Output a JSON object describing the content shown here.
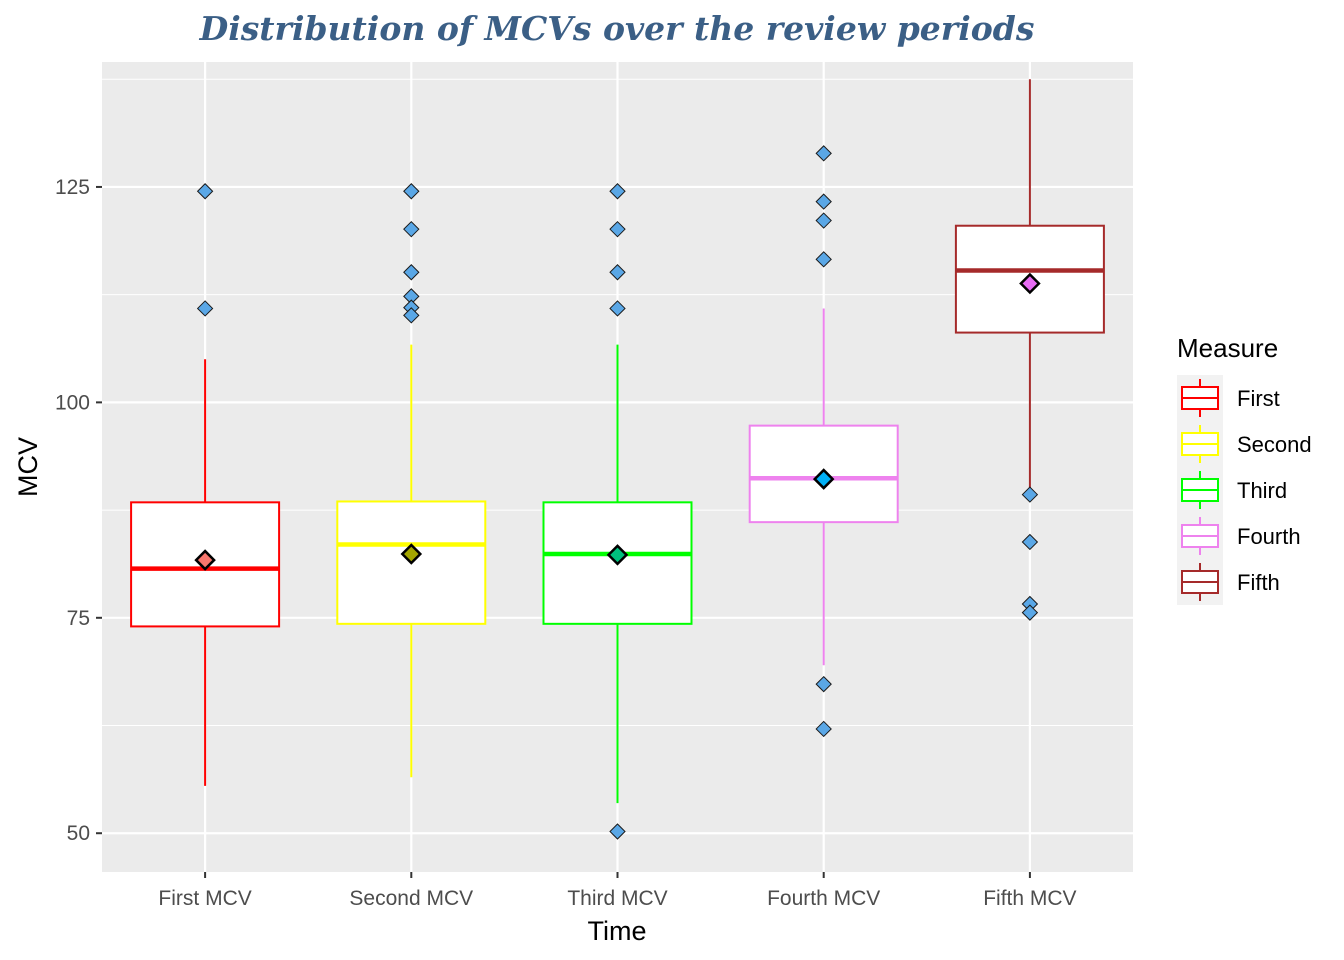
{
  "chart_data": {
    "type": "boxplot",
    "title": "Distribution of MCVs over the review periods",
    "xlabel": "Time",
    "ylabel": "MCV",
    "ylim": [
      45.5,
      139.5
    ],
    "yticks": [
      50,
      75,
      100,
      125
    ],
    "grid": true,
    "legend": {
      "title": "Measure",
      "placement": "right",
      "entries": [
        "First",
        "Second",
        "Third",
        "Fourth",
        "Fifth"
      ]
    },
    "categories": [
      "First MCV",
      "Second MCV",
      "Third MCV",
      "Fourth MCV",
      "Fifth MCV"
    ],
    "series": [
      {
        "legend": "First",
        "color": "#ff0000",
        "mean_color": "#f8766d",
        "whisker_low": 55.5,
        "q1": 74,
        "median": 80.7,
        "q3": 88.4,
        "whisker_high": 105,
        "mean": 81.7,
        "outliers": [
          124.5,
          110.9
        ]
      },
      {
        "legend": "Second",
        "color": "#ffff00",
        "mean_color": "#a3a500",
        "whisker_low": 56.5,
        "q1": 74.3,
        "median": 83.5,
        "q3": 88.5,
        "whisker_high": 106.7,
        "mean": 82.4,
        "outliers": [
          124.5,
          120.1,
          115.1,
          112.3,
          111.0,
          110.1
        ]
      },
      {
        "legend": "Third",
        "color": "#00ff00",
        "mean_color": "#00bf7d",
        "whisker_low": 53.5,
        "q1": 74.3,
        "median": 82.4,
        "q3": 88.4,
        "whisker_high": 106.7,
        "mean": 82.3,
        "outliers": [
          124.5,
          120.1,
          115.1,
          110.9,
          50.2
        ]
      },
      {
        "legend": "Fourth",
        "color": "#ee82ee",
        "mean_color": "#00b0f6",
        "whisker_low": 69.5,
        "q1": 86.1,
        "median": 91.2,
        "q3": 97.3,
        "whisker_high": 110.9,
        "mean": 91.1,
        "outliers": [
          128.9,
          123.3,
          121.1,
          116.6,
          67.3,
          62.1
        ]
      },
      {
        "legend": "Fifth",
        "color": "#a52a2a",
        "mean_color": "#e76bf3",
        "whisker_low": 89.3,
        "q1": 108.1,
        "median": 115.3,
        "q3": 120.5,
        "whisker_high": 137.5,
        "mean": 113.8,
        "outliers": [
          89.3,
          83.8,
          76.6,
          75.6
        ]
      }
    ],
    "outlier_color": "#5aa7e6",
    "panel_color": "#ebebeb"
  }
}
